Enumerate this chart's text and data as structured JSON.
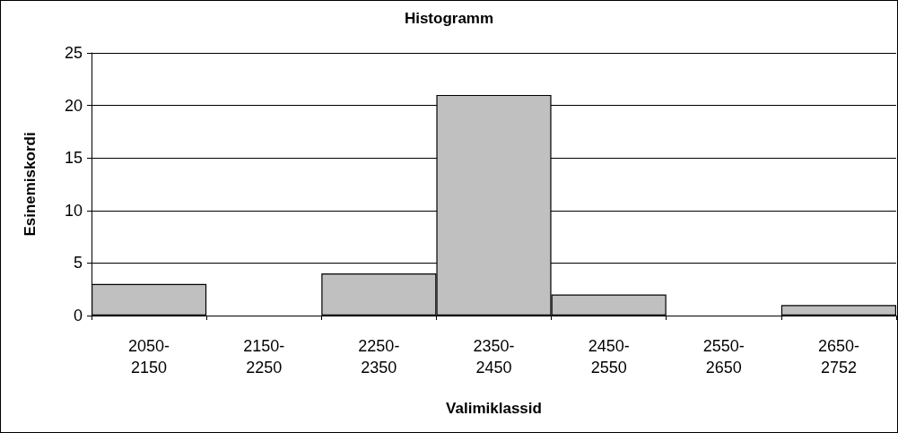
{
  "chart_data": {
    "type": "bar",
    "title": "Histogramm",
    "xlabel": "Valimiklassid",
    "ylabel": "Esinemiskordi",
    "categories": [
      "2050-2150",
      "2150-2250",
      "2250-2350",
      "2350-2450",
      "2450-2550",
      "2550-2650",
      "2650-2752"
    ],
    "values": [
      3,
      0,
      4,
      21,
      2,
      0,
      1
    ],
    "color": "#c0c0c0",
    "ylim": [
      0,
      25
    ],
    "yticks": [
      0,
      5,
      10,
      15,
      20,
      25
    ],
    "grid": "y"
  }
}
